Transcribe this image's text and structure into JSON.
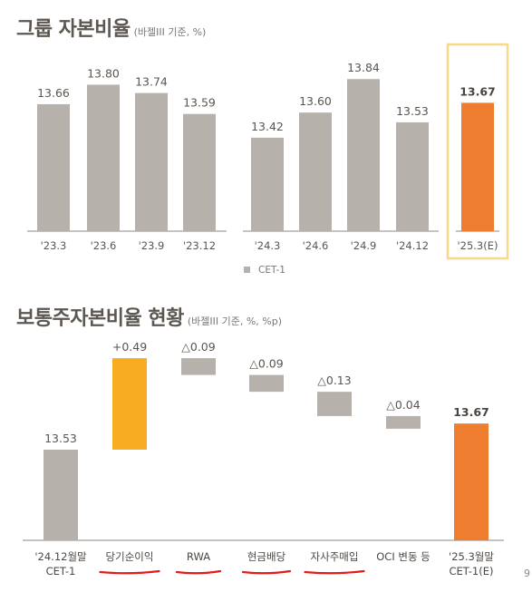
{
  "section1": {
    "title": "그룹 자본비율",
    "subtitle": "(바젤III 기준, %)"
  },
  "section2": {
    "title": "보통주자본비율 현황",
    "subtitle": "(바젤III 기준, %, %p)"
  },
  "colors": {
    "gray": "#b7b1ab",
    "orange": "#ef7d2f",
    "yellow": "#f7ad1f",
    "highlight_border": "#f8d88a",
    "underline": "#e31b1b"
  },
  "page_number": "9",
  "chart_data": [
    {
      "type": "bar",
      "title": "그룹 자본비율",
      "categories": [
        "'23.3",
        "'23.6",
        "'23.9",
        "'23.12",
        "'24.3",
        "'24.6",
        "'24.9",
        "'24.12",
        "'25.3(E)"
      ],
      "series": [
        {
          "name": "CET-1",
          "values": [
            13.66,
            13.8,
            13.74,
            13.59,
            13.42,
            13.6,
            13.84,
            13.53,
            13.67
          ]
        }
      ],
      "value_labels": [
        "13.66",
        "13.80",
        "13.74",
        "13.59",
        "13.42",
        "13.60",
        "13.84",
        "13.53",
        "13.67"
      ],
      "highlight": "'25.3(E)",
      "legend": "bottom-center",
      "grid": false,
      "ylim": [
        12.75,
        13.9
      ]
    },
    {
      "type": "bar",
      "subtype": "waterfall",
      "title": "보통주자본비율 현황",
      "categories": [
        "'24.12월말\nCET-1",
        "당기순이익",
        "RWA",
        "현금배당",
        "자사주매입",
        "OCI 변동 등",
        "'25.3월말\nCET-1(E)"
      ],
      "values": [
        13.53,
        0.49,
        -0.09,
        -0.09,
        -0.13,
        -0.04,
        13.67
      ],
      "value_labels": [
        "13.53",
        "+0.49",
        "△0.09",
        "△0.09",
        "△0.13",
        "△0.04",
        "13.67"
      ],
      "underlined_categories": [
        "당기순이익",
        "RWA",
        "현금배당",
        "자사주매입"
      ],
      "grid": false
    }
  ]
}
